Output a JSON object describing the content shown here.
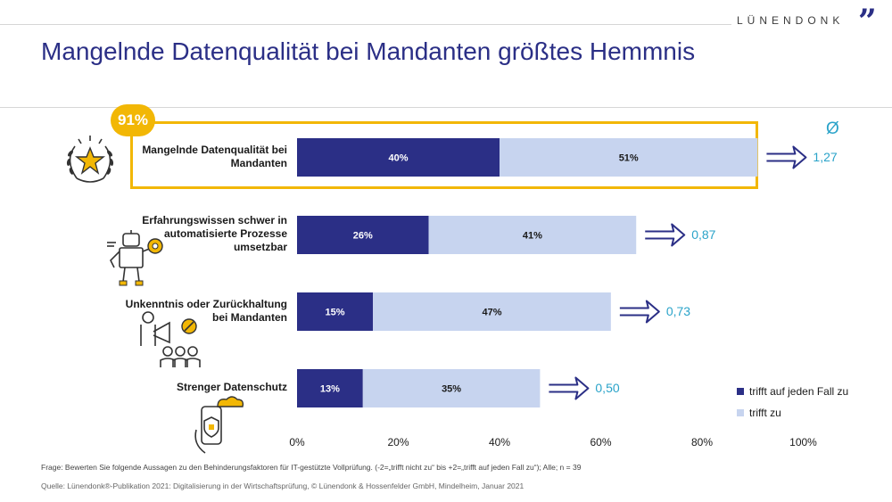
{
  "brand": {
    "name": "LÜNENDONK",
    "mark": "”"
  },
  "title": "Mangelnde Datenqualität bei Mandanten größtes Hemmnis",
  "highlight_badge": "91%",
  "average_symbol": "Ø",
  "chart_data": {
    "type": "bar",
    "orientation": "horizontal",
    "stacked": true,
    "categories": [
      [
        "Mangelnde Datenqualität bei",
        "Mandanten"
      ],
      [
        "Erfahrungswissen schwer in",
        "automatisierte Prozesse",
        "umsetzbar"
      ],
      [
        "Unkenntnis oder Zurückhaltung",
        "bei Mandanten"
      ],
      [
        "Strenger Datenschutz"
      ]
    ],
    "series": [
      {
        "name": "trifft auf jeden Fall zu",
        "color": "#2b2f86",
        "values": [
          40,
          26,
          15,
          13
        ],
        "labels": [
          "40%",
          "26%",
          "15%",
          "13%"
        ]
      },
      {
        "name": "trifft zu",
        "color": "#c7d4ef",
        "values": [
          51,
          41,
          47,
          35
        ],
        "labels": [
          "51%",
          "41%",
          "47%",
          "35%"
        ]
      }
    ],
    "averages": [
      "1,27",
      "0,87",
      "0,73",
      "0,50"
    ],
    "xlim": [
      0,
      100
    ],
    "xticks": [
      "0%",
      "20%",
      "40%",
      "60%",
      "80%",
      "100%"
    ],
    "legend_position": "bottom-right"
  },
  "footnotes": {
    "question": "Frage: Bewerten Sie folgende Aussagen zu den Behinderungsfaktoren für IT-gestützte Vollprüfung. (-2=„trifft nicht zu“ bis +2=„trifft auf jeden Fall zu“); Alle; n = 39",
    "source": "Quelle: Lünendonk®-Publikation 2021: Digitalisierung in der Wirtschaftsprüfung, © Lünendonk & Hossenfelder GmbH, Mindelheim, Januar 2021"
  },
  "icons": [
    "laurel-star-icon",
    "robot-icon",
    "megaphone-crowd-icon",
    "phone-cloud-shield-icon"
  ],
  "colors": {
    "accent": "#2b2f86",
    "light": "#c7d4ef",
    "highlight": "#f2b705",
    "average": "#2aa3c9"
  }
}
